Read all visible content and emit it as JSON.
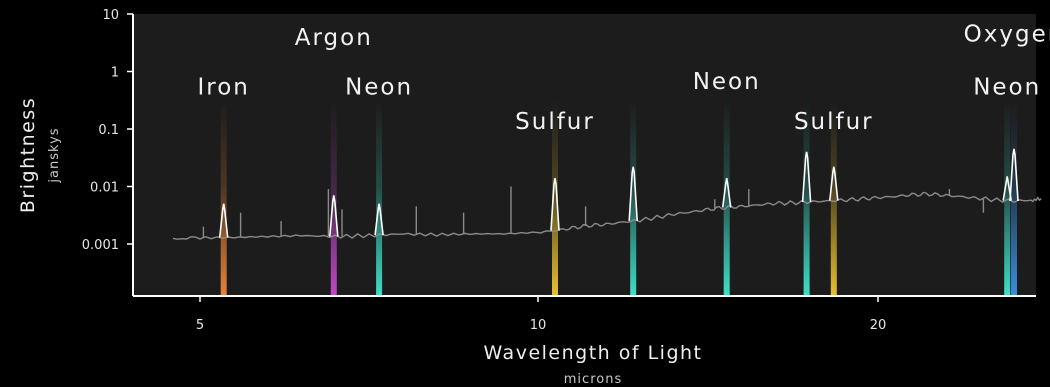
{
  "chart_data": {
    "type": "line",
    "xlabel": "Wavelength of Light",
    "xunit": "microns",
    "ylabel": "Brightness",
    "yunit": "janskys",
    "yscale": "log",
    "ylim": [
      0.0001,
      10
    ],
    "xlim": [
      4.4,
      24.8
    ],
    "x_ticks": [
      {
        "value": 5,
        "label": "5"
      },
      {
        "value": 10,
        "label": "10"
      },
      {
        "value": 20,
        "label": "20"
      }
    ],
    "y_ticks": [
      {
        "value": 10,
        "label": "10"
      },
      {
        "value": 1,
        "label": "1"
      },
      {
        "value": 0.1,
        "label": "0.1"
      },
      {
        "value": 0.01,
        "label": "0.01"
      },
      {
        "value": 0.001,
        "label": "0.001"
      }
    ],
    "grid": false,
    "colors": {
      "background": "#000000",
      "plot_background": "#1c1c1c",
      "axis": "#ffffff",
      "spectrum": "#8a8a8a"
    },
    "emission_lines": [
      {
        "name": "Iron",
        "wavelength": 5.35,
        "peak": 0.005,
        "color": "#e8843a"
      },
      {
        "name": "Argon",
        "wavelength": 6.98,
        "peak": 0.007,
        "color": "#c048c8"
      },
      {
        "name": "Neon",
        "wavelength": 7.65,
        "peak": 0.005,
        "color": "#3ee0c8"
      },
      {
        "name": "Sulfur",
        "wavelength": 10.5,
        "peak": 0.014,
        "color": "#e8c030"
      },
      {
        "name": "Neon",
        "wavelength": 12.8,
        "peak": 0.022,
        "color": "#3ee0c8"
      },
      {
        "name": "Neon",
        "wavelength": 15.55,
        "peak": 0.014,
        "color": "#3ee0c8"
      },
      {
        "name": "Neon",
        "wavelength": 17.9,
        "peak": 0.04,
        "color": "#3ee0c8"
      },
      {
        "name": "Sulfur",
        "wavelength": 18.7,
        "peak": 0.022,
        "color": "#e8c030"
      },
      {
        "name": "Neon",
        "wavelength": 23.8,
        "peak": 0.015,
        "color": "#3ee0c8"
      },
      {
        "name": "Oxygen",
        "wavelength": 24.0,
        "peak": 0.045,
        "color": "#3a8ee0"
      }
    ],
    "labels": [
      {
        "text": "Iron",
        "x": 5.35,
        "y": 0.4
      },
      {
        "text": "Argon",
        "x": 6.98,
        "y": 2.9
      },
      {
        "text": "Neon",
        "x": 7.65,
        "y": 0.4
      },
      {
        "text": "Sulfur",
        "x": 10.5,
        "y": 0.1
      },
      {
        "text": "Neon",
        "x": 15.55,
        "y": 0.5
      },
      {
        "text": "Sulfur",
        "x": 18.7,
        "y": 0.1
      },
      {
        "text": "Neon",
        "x": 23.8,
        "y": 0.4
      },
      {
        "text": "Oxygen",
        "x": 24.0,
        "y": 3.3
      }
    ],
    "continuum": [
      [
        4.6,
        0.00125
      ],
      [
        5.0,
        0.00128
      ],
      [
        5.5,
        0.0013
      ],
      [
        6.0,
        0.00135
      ],
      [
        6.5,
        0.0014
      ],
      [
        7.0,
        0.00135
      ],
      [
        7.5,
        0.0014
      ],
      [
        8.0,
        0.0015
      ],
      [
        8.5,
        0.00145
      ],
      [
        9.0,
        0.0015
      ],
      [
        9.5,
        0.0015
      ],
      [
        10.0,
        0.0016
      ],
      [
        10.5,
        0.0017
      ],
      [
        11.0,
        0.0019
      ],
      [
        11.5,
        0.0021
      ],
      [
        12.0,
        0.0022
      ],
      [
        12.5,
        0.0024
      ],
      [
        13.0,
        0.0026
      ],
      [
        13.5,
        0.0029
      ],
      [
        14.0,
        0.0033
      ],
      [
        14.5,
        0.0036
      ],
      [
        15.0,
        0.004
      ],
      [
        15.5,
        0.0043
      ],
      [
        16.0,
        0.0045
      ],
      [
        16.5,
        0.0048
      ],
      [
        17.0,
        0.0051
      ],
      [
        17.5,
        0.0052
      ],
      [
        18.0,
        0.0054
      ],
      [
        18.5,
        0.0056
      ],
      [
        19.0,
        0.0058
      ],
      [
        19.5,
        0.0061
      ],
      [
        20.0,
        0.0064
      ],
      [
        20.5,
        0.0067
      ],
      [
        21.0,
        0.0072
      ],
      [
        21.5,
        0.0074
      ],
      [
        22.0,
        0.007
      ],
      [
        22.5,
        0.0066
      ],
      [
        23.0,
        0.0062
      ],
      [
        23.5,
        0.0058
      ],
      [
        24.0,
        0.0056
      ],
      [
        24.5,
        0.0058
      ],
      [
        24.8,
        0.006
      ]
    ],
    "minor_peaks": [
      [
        5.05,
        0.002
      ],
      [
        5.6,
        0.0035
      ],
      [
        6.2,
        0.0025
      ],
      [
        6.9,
        0.009
      ],
      [
        7.1,
        0.004
      ],
      [
        8.2,
        0.0045
      ],
      [
        8.9,
        0.0035
      ],
      [
        9.6,
        0.01
      ],
      [
        11.4,
        0.0045
      ],
      [
        15.2,
        0.006
      ],
      [
        16.2,
        0.009
      ],
      [
        17.3,
        0.005
      ],
      [
        22.1,
        0.009
      ],
      [
        23.1,
        0.0035
      ]
    ]
  }
}
